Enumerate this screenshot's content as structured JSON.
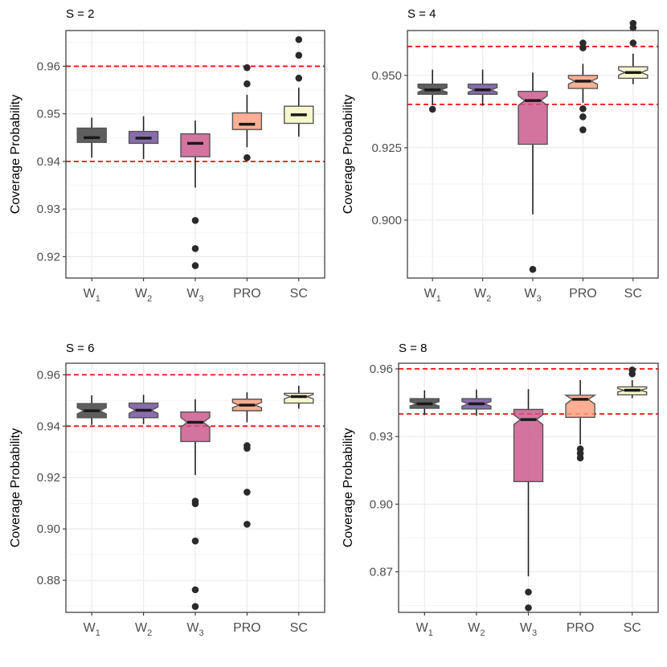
{
  "chart_data": [
    {
      "type": "boxplot",
      "title": "S = 2",
      "xlabel": "",
      "ylabel": "Coverage Probability",
      "ylim": [
        0.9155,
        0.9675
      ],
      "yticks": [
        0.92,
        0.93,
        0.94,
        0.95,
        0.96
      ],
      "ytick_labels": [
        "0.92",
        "0.93",
        "0.94",
        "0.95",
        "0.96"
      ],
      "reference_lines": [
        0.94,
        0.96
      ],
      "notched": false,
      "categories": [
        {
          "main": "W",
          "sub": "1",
          "color": "#3a3a3a",
          "min": 0.9408,
          "q1": 0.944,
          "median": 0.945,
          "q3": 0.947,
          "max": 0.9492,
          "outliers": []
        },
        {
          "main": "W",
          "sub": "2",
          "color": "#6e4c9a",
          "min": 0.9405,
          "q1": 0.9438,
          "median": 0.9449,
          "q3": 0.9463,
          "max": 0.9495,
          "outliers": []
        },
        {
          "main": "W",
          "sub": "3",
          "color": "#c9558a",
          "min": 0.9345,
          "q1": 0.941,
          "median": 0.9438,
          "q3": 0.9458,
          "max": 0.9486,
          "outliers": [
            0.9276,
            0.9217,
            0.9181
          ]
        },
        {
          "main": "PRO",
          "sub": "",
          "color": "#fb9d7a",
          "min": 0.943,
          "q1": 0.9467,
          "median": 0.9478,
          "q3": 0.9502,
          "max": 0.954,
          "outliers": [
            0.9597,
            0.9563,
            0.9408
          ]
        },
        {
          "main": "SC",
          "sub": "",
          "color": "#f6f6c2",
          "min": 0.9452,
          "q1": 0.948,
          "median": 0.9498,
          "q3": 0.9516,
          "max": 0.9555,
          "outliers": [
            0.9656,
            0.9623,
            0.9575
          ]
        }
      ]
    },
    {
      "type": "boxplot",
      "title": "S = 4",
      "xlabel": "",
      "ylabel": "Coverage Probability",
      "ylim": [
        0.88,
        0.9655
      ],
      "yticks": [
        0.9,
        0.925,
        0.95
      ],
      "ytick_labels": [
        "0.900",
        "0.925",
        "0.950"
      ],
      "reference_lines": [
        0.94,
        0.96
      ],
      "notched": true,
      "categories": [
        {
          "main": "W",
          "sub": "1",
          "color": "#3a3a3a",
          "min": 0.9398,
          "q1": 0.9435,
          "median": 0.945,
          "q3": 0.947,
          "max": 0.952,
          "outliers": [
            0.9383
          ]
        },
        {
          "main": "W",
          "sub": "2",
          "color": "#6e4c9a",
          "min": 0.9395,
          "q1": 0.9435,
          "median": 0.945,
          "q3": 0.947,
          "max": 0.952,
          "outliers": []
        },
        {
          "main": "W",
          "sub": "3",
          "color": "#c9558a",
          "min": 0.902,
          "q1": 0.9262,
          "median": 0.9413,
          "q3": 0.9445,
          "max": 0.951,
          "outliers": [
            0.883
          ]
        },
        {
          "main": "PRO",
          "sub": "",
          "color": "#fb9d7a",
          "min": 0.9405,
          "q1": 0.9455,
          "median": 0.948,
          "q3": 0.95,
          "max": 0.954,
          "outliers": [
            0.9612,
            0.9595,
            0.9385,
            0.9357,
            0.9312
          ]
        },
        {
          "main": "SC",
          "sub": "",
          "color": "#f6f6c2",
          "min": 0.947,
          "q1": 0.949,
          "median": 0.951,
          "q3": 0.953,
          "max": 0.9575,
          "outliers": [
            0.968,
            0.9665,
            0.9612
          ]
        }
      ]
    },
    {
      "type": "boxplot",
      "title": "S = 6",
      "xlabel": "",
      "ylabel": "Coverage Probability",
      "ylim": [
        0.8675,
        0.9645
      ],
      "yticks": [
        0.88,
        0.9,
        0.92,
        0.94,
        0.96
      ],
      "ytick_labels": [
        "0.88",
        "0.90",
        "0.92",
        "0.94",
        "0.96"
      ],
      "reference_lines": [
        0.94,
        0.96
      ],
      "notched": true,
      "categories": [
        {
          "main": "W",
          "sub": "1",
          "color": "#3a3a3a",
          "min": 0.9405,
          "q1": 0.9433,
          "median": 0.946,
          "q3": 0.9488,
          "max": 0.952,
          "outliers": []
        },
        {
          "main": "W",
          "sub": "2",
          "color": "#6e4c9a",
          "min": 0.9408,
          "q1": 0.9433,
          "median": 0.9462,
          "q3": 0.949,
          "max": 0.9522,
          "outliers": []
        },
        {
          "main": "W",
          "sub": "3",
          "color": "#c9558a",
          "min": 0.921,
          "q1": 0.934,
          "median": 0.9415,
          "q3": 0.9455,
          "max": 0.9505,
          "outliers": [
            0.9108,
            0.9098,
            0.8953,
            0.8763,
            0.8698
          ]
        },
        {
          "main": "PRO",
          "sub": "",
          "color": "#fb9d7a",
          "min": 0.9415,
          "q1": 0.946,
          "median": 0.9482,
          "q3": 0.9505,
          "max": 0.9532,
          "outliers": [
            0.9324,
            0.9314,
            0.9143,
            0.9018
          ]
        },
        {
          "main": "SC",
          "sub": "",
          "color": "#f6f6c2",
          "min": 0.9468,
          "q1": 0.949,
          "median": 0.9515,
          "q3": 0.9528,
          "max": 0.9557,
          "outliers": []
        }
      ]
    },
    {
      "type": "boxplot",
      "title": "S = 8",
      "xlabel": "",
      "ylabel": "Coverage Probability",
      "ylim": [
        0.852,
        0.9625
      ],
      "yticks": [
        0.87,
        0.9,
        0.93,
        0.96
      ],
      "ytick_labels": [
        "0.87",
        "0.90",
        "0.93",
        "0.96"
      ],
      "reference_lines": [
        0.94,
        0.96
      ],
      "notched": true,
      "categories": [
        {
          "main": "W",
          "sub": "1",
          "color": "#3a3a3a",
          "min": 0.9395,
          "q1": 0.9425,
          "median": 0.9445,
          "q3": 0.9468,
          "max": 0.9505,
          "outliers": []
        },
        {
          "main": "W",
          "sub": "2",
          "color": "#6e4c9a",
          "min": 0.9392,
          "q1": 0.9422,
          "median": 0.9445,
          "q3": 0.9468,
          "max": 0.9508,
          "outliers": []
        },
        {
          "main": "W",
          "sub": "3",
          "color": "#c9558a",
          "min": 0.868,
          "q1": 0.91,
          "median": 0.9375,
          "q3": 0.942,
          "max": 0.951,
          "outliers": [
            0.861,
            0.854
          ]
        },
        {
          "main": "PRO",
          "sub": "",
          "color": "#fb9d7a",
          "min": 0.9265,
          "q1": 0.9385,
          "median": 0.9465,
          "q3": 0.9483,
          "max": 0.955,
          "outliers": [
            0.9245,
            0.9225,
            0.9205
          ]
        },
        {
          "main": "SC",
          "sub": "",
          "color": "#f6f6c2",
          "min": 0.947,
          "q1": 0.9485,
          "median": 0.9505,
          "q3": 0.952,
          "max": 0.955,
          "outliers": [
            0.9595,
            0.9578
          ]
        }
      ]
    }
  ]
}
